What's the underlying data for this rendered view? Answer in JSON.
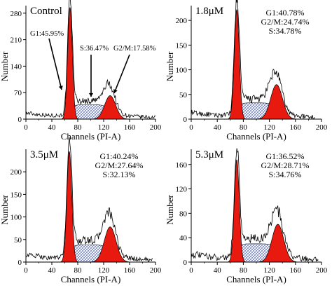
{
  "figure": {
    "panels": [
      {
        "condition": "Control",
        "stats": [
          "G1:45.95%",
          "S:36.47%",
          "G2/M:17.58%"
        ],
        "stats_layout": "arrows"
      },
      {
        "condition": "1.8μM",
        "stats": [
          "G1:40.78%",
          "G2/M:24.74%",
          "S:34.78%"
        ],
        "stats_layout": "block"
      },
      {
        "condition": "3.5μM",
        "stats": [
          "G1:40.24%",
          "G2/M:27.64%",
          "S:32.13%"
        ],
        "stats_layout": "block"
      },
      {
        "condition": "5.3μM",
        "stats": [
          "G1:36.52%",
          "G2/M:28.71%",
          "S:34.76%"
        ],
        "stats_layout": "block"
      }
    ]
  },
  "chart_data": [
    {
      "type": "area",
      "title": "Control",
      "xlabel": "Channels (PI-A)",
      "ylabel": "Number",
      "xlim": [
        0,
        200
      ],
      "ylim": [
        0,
        300
      ],
      "xticks": [
        0,
        40,
        80,
        120,
        160,
        200
      ],
      "yticks": [
        0,
        70,
        140,
        210,
        280
      ],
      "annotations": [
        "G1:45.95%",
        "S:36.47%",
        "G2/M:17.58%"
      ],
      "g1": {
        "center": 68,
        "sigma": 3.6,
        "peak": 295
      },
      "g2": {
        "center": 130,
        "sigma": 8.5,
        "peak": 62
      },
      "s": {
        "from": 68,
        "to": 130,
        "level": 38
      },
      "baseline": 10,
      "x_end": 200
    },
    {
      "type": "area",
      "title": "1.8μM",
      "xlabel": "Channels (PI-A)",
      "ylabel": "Number",
      "xlim": [
        0,
        200
      ],
      "ylim": [
        0,
        230
      ],
      "xticks": [
        0,
        40,
        80,
        120,
        160,
        200
      ],
      "yticks": [
        0,
        50,
        100,
        150,
        200
      ],
      "annotations": [
        "G1:40.78%",
        "G2/M:24.74%",
        "S:34.78%"
      ],
      "g1": {
        "center": 70,
        "sigma": 3.8,
        "peak": 222
      },
      "g2": {
        "center": 131,
        "sigma": 9,
        "peak": 70
      },
      "s": {
        "from": 70,
        "to": 131,
        "level": 33
      },
      "baseline": 8,
      "x_end": 190
    },
    {
      "type": "area",
      "title": "3.5μM",
      "xlabel": "Channels (PI-A)",
      "ylabel": "Number",
      "xlim": [
        0,
        200
      ],
      "ylim": [
        0,
        250
      ],
      "xticks": [
        0,
        40,
        80,
        120,
        160,
        200
      ],
      "yticks": [
        0,
        50,
        100,
        150,
        200
      ],
      "annotations": [
        "G1:40.24%",
        "G2/M:27.64%",
        "S:32.13%"
      ],
      "g1": {
        "center": 67,
        "sigma": 3.8,
        "peak": 245
      },
      "g2": {
        "center": 130,
        "sigma": 9,
        "peak": 78
      },
      "s": {
        "from": 67,
        "to": 130,
        "level": 38
      },
      "baseline": 10,
      "x_end": 195
    },
    {
      "type": "area",
      "title": "5.3μM",
      "xlabel": "Channels (PI-A)",
      "ylabel": "Number",
      "xlim": [
        0,
        200
      ],
      "ylim": [
        0,
        185
      ],
      "xticks": [
        0,
        40,
        80,
        120,
        160,
        200
      ],
      "yticks": [
        0,
        40,
        80,
        120,
        160
      ],
      "annotations": [
        "G1:36.52%",
        "G2/M:28.71%",
        "S:34.76%"
      ],
      "g1": {
        "center": 70,
        "sigma": 3.8,
        "peak": 168
      },
      "g2": {
        "center": 133,
        "sigma": 9,
        "peak": 62
      },
      "s": {
        "from": 70,
        "to": 133,
        "level": 30
      },
      "baseline": 8,
      "x_end": 195
    }
  ],
  "colors": {
    "fill": "#e8190f",
    "s_hatch": "#3a4fb8",
    "outline": "#000000"
  }
}
